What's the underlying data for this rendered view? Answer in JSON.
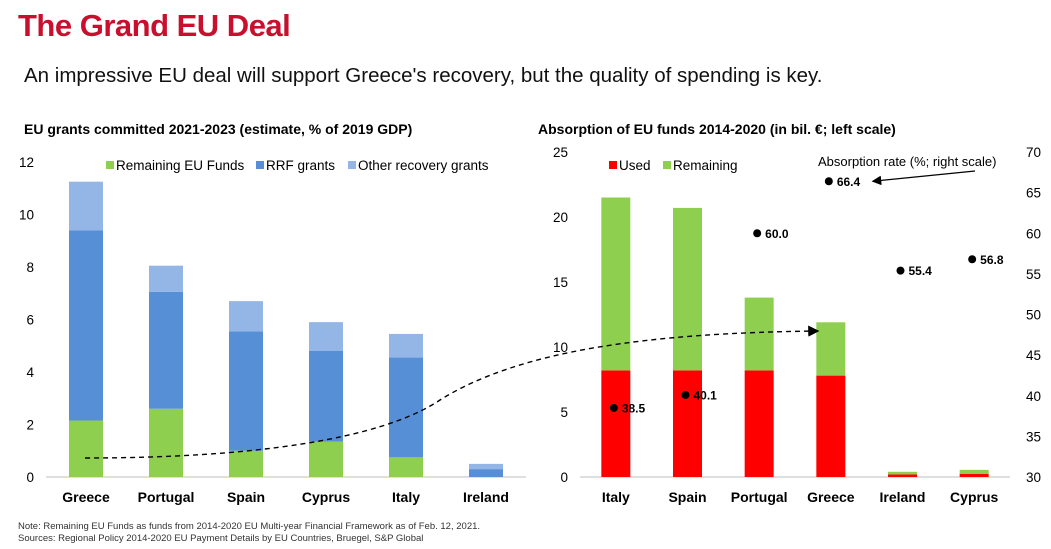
{
  "header": {
    "title": "The Grand EU Deal",
    "subtitle": "An impressive EU deal will support Greece's recovery, but the quality of spending is key."
  },
  "footnote": {
    "line1": "Note: Remaining EU Funds as funds from 2014-2020 EU Multi-year Financial Framework as of Feb. 12, 2021.",
    "line2": "Sources: Regional Policy 2014-2020 EU Payment Details by EU Countries, Bruegel, S&P Global"
  },
  "colors": {
    "green": "#8fcf4f",
    "blue": "#568fd6",
    "lightblue": "#93b6e6",
    "red": "#ff0000"
  },
  "chart_data": [
    {
      "type": "bar",
      "stacked": true,
      "title": "EU grants committed 2021-2023 (estimate, % of 2019 GDP)",
      "categories": [
        "Greece",
        "Portugal",
        "Spain",
        "Cyprus",
        "Italy",
        "Ireland"
      ],
      "series": [
        {
          "name": "Remaining EU Funds",
          "color": "#8fcf4f",
          "values": [
            2.15,
            2.6,
            1.0,
            1.35,
            0.75,
            0.0
          ]
        },
        {
          "name": "RRF grants",
          "color": "#568fd6",
          "values": [
            7.25,
            4.45,
            4.55,
            3.45,
            3.8,
            0.3
          ]
        },
        {
          "name": "Other recovery grants",
          "color": "#93b6e6",
          "values": [
            1.85,
            1.0,
            1.15,
            1.1,
            0.9,
            0.2
          ]
        }
      ],
      "ylim": [
        0,
        12
      ],
      "yticks": [
        0,
        2,
        4,
        6,
        8,
        10,
        12
      ],
      "legend": "top",
      "grid": false
    },
    {
      "type": "bar",
      "stacked": true,
      "title": "Absorption of EU funds 2014-2020 (in bil. €; left scale)",
      "categories": [
        "Italy",
        "Spain",
        "Portugal",
        "Greece",
        "Ireland",
        "Cyprus"
      ],
      "series": [
        {
          "name": "Used",
          "color": "#ff0000",
          "values": [
            8.2,
            8.2,
            8.2,
            7.8,
            0.2,
            0.25
          ]
        },
        {
          "name": "Remaining",
          "color": "#8fcf4f",
          "values": [
            13.3,
            12.5,
            5.6,
            4.1,
            0.2,
            0.3
          ]
        }
      ],
      "secondary_series": {
        "name": "Absorption rate (%; right scale)",
        "type": "scatter",
        "values": [
          38.5,
          40.1,
          60.0,
          66.4,
          55.4,
          56.8
        ],
        "labels": [
          "38.5",
          "40.1",
          "60.0",
          "66.4",
          "55.4",
          "56.8"
        ]
      },
      "ylim": [
        0,
        25
      ],
      "yticks": [
        0,
        5,
        10,
        15,
        20,
        25
      ],
      "y2lim": [
        30,
        70
      ],
      "y2ticks": [
        30,
        35,
        40,
        45,
        50,
        55,
        60,
        65,
        70
      ],
      "legend": "top-left",
      "grid": false
    }
  ]
}
